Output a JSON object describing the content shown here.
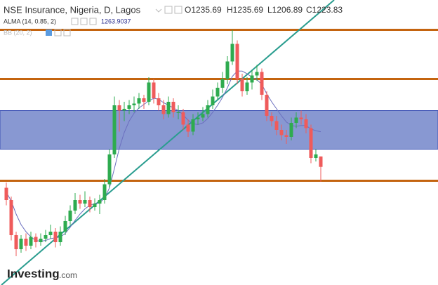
{
  "chart_data": {
    "type": "candlestick",
    "title": "NSE Insurance, Nigeria, D, Lagos",
    "ohlc_labels": [
      "O1235.69",
      "H1235.69",
      "L1206.89",
      "C1223.83"
    ],
    "indicator": "ALMA (14, 0.85, 2)",
    "indicator_hidden": "BB (20, 2)",
    "brand": "Investing",
    "brand_suffix": ".com",
    "ylim": [
      1089.2,
      1414
    ],
    "up_color": "#2eab4f",
    "down_color": "#ef5b5b",
    "open": [
      1200,
      1186,
      1146,
      1130,
      1142,
      1134,
      1144,
      1138,
      1142,
      1146,
      1150,
      1138,
      1150,
      1162,
      1174,
      1186,
      1182,
      1186,
      1178,
      1182,
      1186,
      1204,
      1238,
      1294,
      1288,
      1290,
      1294,
      1296,
      1302,
      1298,
      1320,
      1302,
      1294,
      1284,
      1298,
      1286,
      1286,
      1272,
      1264,
      1278,
      1280,
      1284,
      1294,
      1304,
      1314,
      1324,
      1344,
      1364,
      1324,
      1310,
      1320,
      1328,
      1332,
      1306,
      1282,
      1276,
      1266,
      1260,
      1258,
      1274,
      1280,
      1278,
      1268,
      1234,
      1235.69
    ],
    "high": [
      1206,
      1190,
      1150,
      1146,
      1148,
      1150,
      1148,
      1148,
      1152,
      1158,
      1154,
      1156,
      1168,
      1180,
      1194,
      1192,
      1196,
      1190,
      1188,
      1192,
      1210,
      1244,
      1304,
      1300,
      1298,
      1300,
      1304,
      1308,
      1306,
      1326,
      1324,
      1308,
      1300,
      1304,
      1302,
      1294,
      1290,
      1278,
      1284,
      1286,
      1292,
      1300,
      1312,
      1320,
      1332,
      1350,
      1380,
      1368,
      1330,
      1326,
      1334,
      1340,
      1336,
      1310,
      1286,
      1282,
      1272,
      1266,
      1280,
      1286,
      1288,
      1284,
      1272,
      1244,
      1235.69
    ],
    "low": [
      1180,
      1140,
      1122,
      1126,
      1128,
      1130,
      1132,
      1134,
      1138,
      1142,
      1132,
      1134,
      1146,
      1158,
      1170,
      1176,
      1178,
      1172,
      1174,
      1170,
      1182,
      1200,
      1234,
      1264,
      1276,
      1284,
      1286,
      1290,
      1290,
      1294,
      1296,
      1288,
      1278,
      1280,
      1280,
      1278,
      1266,
      1258,
      1260,
      1272,
      1276,
      1280,
      1290,
      1300,
      1308,
      1318,
      1340,
      1318,
      1304,
      1306,
      1312,
      1322,
      1300,
      1276,
      1270,
      1260,
      1254,
      1250,
      1254,
      1268,
      1272,
      1262,
      1228,
      1230,
      1206.89
    ],
    "close": [
      1186,
      1146,
      1130,
      1142,
      1134,
      1144,
      1138,
      1142,
      1146,
      1150,
      1138,
      1150,
      1162,
      1174,
      1186,
      1182,
      1186,
      1178,
      1182,
      1186,
      1204,
      1238,
      1294,
      1288,
      1290,
      1294,
      1296,
      1302,
      1298,
      1320,
      1302,
      1294,
      1284,
      1298,
      1286,
      1286,
      1272,
      1264,
      1278,
      1280,
      1284,
      1294,
      1304,
      1314,
      1324,
      1344,
      1364,
      1324,
      1310,
      1320,
      1328,
      1332,
      1306,
      1282,
      1276,
      1266,
      1260,
      1258,
      1274,
      1280,
      1278,
      1268,
      1234,
      1238,
      1223.83
    ],
    "alma": {
      "color": "#6b6fbf",
      "values": [
        1195,
        1185,
        1170,
        1158,
        1150,
        1144,
        1140,
        1139,
        1140,
        1142,
        1143,
        1144,
        1148,
        1155,
        1163,
        1170,
        1176,
        1180,
        1182,
        1183,
        1188,
        1200,
        1222,
        1245,
        1263,
        1276,
        1285,
        1291,
        1295,
        1299,
        1302,
        1301,
        1297,
        1294,
        1291,
        1288,
        1283,
        1277,
        1273,
        1272,
        1274,
        1279,
        1286,
        1294,
        1303,
        1314,
        1327,
        1333,
        1333,
        1330,
        1326,
        1323,
        1318,
        1307,
        1298,
        1290,
        1282,
        1275,
        1271,
        1270,
        1271,
        1271,
        1267,
        1265,
        1263.9037
      ]
    },
    "levels": {
      "color": "#c4640f",
      "values": [
        1380,
        1324,
        1208
      ]
    },
    "zone": {
      "color": "#8898d2",
      "border": "#3b50b4",
      "values": [
        1244,
        1288
      ]
    }
  }
}
